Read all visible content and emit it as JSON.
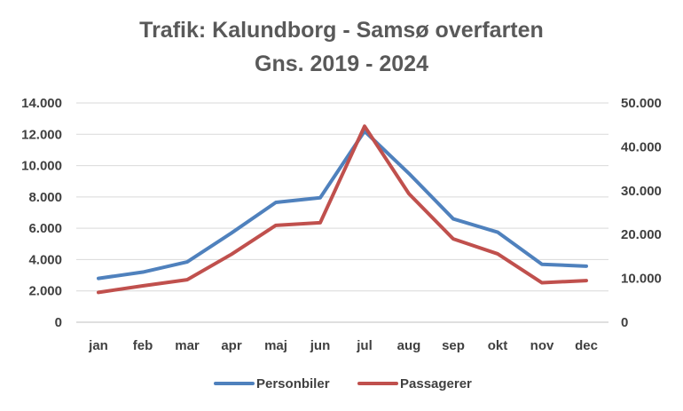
{
  "chart_data": {
    "type": "line",
    "title": "Trafik: Kalundborg - Samsø overfarten",
    "subtitle": "Gns. 2019 - 2024",
    "categories": [
      "jan",
      "feb",
      "mar",
      "apr",
      "maj",
      "jun",
      "jul",
      "aug",
      "sep",
      "okt",
      "nov",
      "dec"
    ],
    "left_axis": {
      "ylim": [
        0,
        14000
      ],
      "ticks": [
        0,
        2000,
        4000,
        6000,
        8000,
        10000,
        12000,
        14000
      ],
      "tick_labels": [
        "0",
        "2.000",
        "4.000",
        "6.000",
        "8.000",
        "10.000",
        "12.000",
        "14.000"
      ]
    },
    "right_axis": {
      "ylim": [
        0,
        50000
      ],
      "ticks": [
        0,
        10000,
        20000,
        30000,
        40000,
        50000
      ],
      "tick_labels": [
        "0",
        "10.000",
        "20.000",
        "30.000",
        "40.000",
        "50.000"
      ]
    },
    "grid": true,
    "legend_position": "bottom",
    "series": [
      {
        "name": "Personbiler",
        "axis": "left",
        "color": "#4f81bd",
        "values": [
          2800,
          3200,
          3850,
          5700,
          7650,
          7950,
          12200,
          9500,
          6600,
          5750,
          3700,
          3580
        ]
      },
      {
        "name": "Passagerer",
        "axis": "right",
        "color": "#c0504d",
        "values": [
          6800,
          8300,
          9700,
          15500,
          22100,
          22700,
          44700,
          29300,
          19000,
          15600,
          9000,
          9500
        ]
      }
    ]
  }
}
